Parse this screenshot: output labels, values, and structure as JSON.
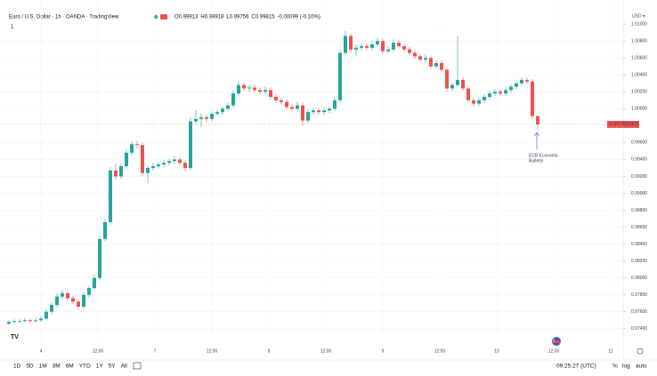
{
  "chart_data": {
    "type": "candlestick",
    "title": "Euro / U.S. Dollar · 1h · OANDA · TradingView",
    "ohlc_text": [
      "O0.99913",
      "H0.99918",
      "L0.99756",
      "C0.99815",
      "-0.00099 (-0.10%)"
    ],
    "indicator_row": "1",
    "currency": "USD ▾",
    "up_color": "#26a69a",
    "down_color": "#ef5350",
    "ylim": [
      0.9724,
      1.0118
    ],
    "yticks": [
      {
        "value": 0.974,
        "label": "0.97400"
      },
      {
        "value": 0.976,
        "label": "0.97600"
      },
      {
        "value": 0.978,
        "label": "0.97800"
      },
      {
        "value": 0.98,
        "label": "0.98000"
      },
      {
        "value": 0.982,
        "label": "0.98200"
      },
      {
        "value": 0.984,
        "label": "0.98400"
      },
      {
        "value": 0.986,
        "label": "0.98600"
      },
      {
        "value": 0.988,
        "label": "0.98800"
      },
      {
        "value": 0.99,
        "label": "0.99000"
      },
      {
        "value": 0.992,
        "label": "0.99200"
      },
      {
        "value": 0.994,
        "label": "0.99400"
      },
      {
        "value": 0.996,
        "label": "0.99600"
      },
      {
        "value": 1.0,
        "label": "1.00000"
      },
      {
        "value": 1.002,
        "label": "1.00200"
      },
      {
        "value": 1.004,
        "label": "1.00400"
      },
      {
        "value": 1.006,
        "label": "1.00600"
      },
      {
        "value": 1.008,
        "label": "1.00800"
      },
      {
        "value": 1.01,
        "label": "1.01000"
      }
    ],
    "x_labels": [
      "4",
      "12:00",
      "7",
      "12:00",
      "8",
      "12:00",
      "9",
      "12:00",
      "10",
      "12:00",
      "11"
    ],
    "grid": true,
    "last_price_label": "EURUSD",
    "annotation": [
      "ECB Economic",
      "Bulletin"
    ],
    "candles": [
      [
        0.9746,
        0.975,
        0.9744,
        0.9748
      ],
      [
        0.9748,
        0.9751,
        0.9746,
        0.9749
      ],
      [
        0.9749,
        0.9752,
        0.9747,
        0.9749
      ],
      [
        0.9749,
        0.9753,
        0.9747,
        0.975
      ],
      [
        0.975,
        0.9752,
        0.9746,
        0.9749
      ],
      [
        0.9749,
        0.9753,
        0.9747,
        0.975
      ],
      [
        0.975,
        0.9755,
        0.9748,
        0.9752
      ],
      [
        0.9752,
        0.9763,
        0.975,
        0.976
      ],
      [
        0.976,
        0.9771,
        0.9757,
        0.9768
      ],
      [
        0.9768,
        0.9782,
        0.9765,
        0.9778
      ],
      [
        0.9778,
        0.9786,
        0.9775,
        0.9782
      ],
      [
        0.9782,
        0.9785,
        0.9773,
        0.9776
      ],
      [
        0.9776,
        0.9779,
        0.9769,
        0.9772
      ],
      [
        0.9772,
        0.9775,
        0.9762,
        0.9766
      ],
      [
        0.9766,
        0.9783,
        0.9763,
        0.978
      ],
      [
        0.978,
        0.9791,
        0.9777,
        0.9788
      ],
      [
        0.9788,
        0.9804,
        0.9785,
        0.98
      ],
      [
        0.98,
        0.985,
        0.9797,
        0.9846
      ],
      [
        0.9846,
        0.987,
        0.9843,
        0.9866
      ],
      [
        0.9866,
        0.9931,
        0.9862,
        0.9927
      ],
      [
        0.9927,
        0.9935,
        0.9916,
        0.992
      ],
      [
        0.992,
        0.9936,
        0.9917,
        0.9932
      ],
      [
        0.9932,
        0.9952,
        0.9929,
        0.9948
      ],
      [
        0.9948,
        0.9962,
        0.9945,
        0.9958
      ],
      [
        0.9958,
        0.9962,
        0.9953,
        0.9957
      ],
      [
        0.9957,
        0.996,
        0.992,
        0.9924
      ],
      [
        0.9924,
        0.9933,
        0.9912,
        0.993
      ],
      [
        0.993,
        0.9936,
        0.9927,
        0.9932
      ],
      [
        0.9932,
        0.9937,
        0.9929,
        0.9934
      ],
      [
        0.9934,
        0.9939,
        0.9931,
        0.9936
      ],
      [
        0.9936,
        0.9941,
        0.9933,
        0.9938
      ],
      [
        0.9938,
        0.9944,
        0.9935,
        0.994
      ],
      [
        0.994,
        0.9943,
        0.9933,
        0.9936
      ],
      [
        0.9936,
        0.9939,
        0.9926,
        0.993
      ],
      [
        0.993,
        0.999,
        0.9927,
        0.9985
      ],
      [
        0.9985,
        0.9998,
        0.9982,
        0.9988
      ],
      [
        0.9988,
        0.9994,
        0.9978,
        0.999
      ],
      [
        0.999,
        0.9993,
        0.9984,
        0.9988
      ],
      [
        0.9988,
        0.9997,
        0.9985,
        0.9994
      ],
      [
        0.9994,
        0.9999,
        0.9991,
        0.9996
      ],
      [
        0.9996,
        1.0003,
        0.9993,
        1.0
      ],
      [
        1.0,
        1.0007,
        0.9997,
        1.0004
      ],
      [
        1.0004,
        1.0022,
        1.0001,
        1.0018
      ],
      [
        1.0018,
        1.0032,
        1.0015,
        1.0028
      ],
      [
        1.0028,
        1.0031,
        1.0021,
        1.0024
      ],
      [
        1.0024,
        1.0028,
        1.002,
        1.0025
      ],
      [
        1.0025,
        1.0028,
        1.0019,
        1.0022
      ],
      [
        1.0022,
        1.0025,
        1.0017,
        1.002
      ],
      [
        1.002,
        1.0026,
        1.0017,
        1.0022
      ],
      [
        1.0022,
        1.0025,
        1.0011,
        1.0014
      ],
      [
        1.0014,
        1.0017,
        1.0007,
        1.001
      ],
      [
        1.001,
        1.0013,
        1.0005,
        1.0008
      ],
      [
        1.0008,
        1.0011,
        0.9999,
        1.0002
      ],
      [
        1.0002,
        1.0005,
        0.9997,
        1.0
      ],
      [
        1.0,
        1.0008,
        0.9997,
        1.0004
      ],
      [
        1.0004,
        1.0007,
        0.998,
        0.9986
      ],
      [
        0.9986,
        0.9999,
        0.9983,
        0.9996
      ],
      [
        0.9996,
        1.0001,
        0.9993,
        0.9998
      ],
      [
        0.9998,
        1.0001,
        0.9993,
        0.9996
      ],
      [
        0.9996,
        1.0001,
        0.9993,
        0.9998
      ],
      [
        0.9998,
        1.0003,
        0.9995,
        1.0
      ],
      [
        1.0,
        1.0013,
        0.9997,
        1.001
      ],
      [
        1.001,
        1.007,
        1.0007,
        1.0066
      ],
      [
        1.0066,
        1.0092,
        1.0063,
        1.0086
      ],
      [
        1.0086,
        1.0089,
        1.0066,
        1.007
      ],
      [
        1.007,
        1.0076,
        1.0062,
        1.0072
      ],
      [
        1.0072,
        1.0078,
        1.0069,
        1.0074
      ],
      [
        1.0074,
        1.0077,
        1.0069,
        1.0072
      ],
      [
        1.0072,
        1.008,
        1.0069,
        1.0076
      ],
      [
        1.0076,
        1.0084,
        1.0073,
        1.008
      ],
      [
        1.008,
        1.0083,
        1.0065,
        1.0068
      ],
      [
        1.0068,
        1.0074,
        1.0065,
        1.007
      ],
      [
        1.007,
        1.0082,
        1.0067,
        1.0078
      ],
      [
        1.0078,
        1.0081,
        1.0071,
        1.0074
      ],
      [
        1.0074,
        1.0077,
        1.0067,
        1.007
      ],
      [
        1.007,
        1.0073,
        1.0063,
        1.0066
      ],
      [
        1.0066,
        1.0069,
        1.0059,
        1.0062
      ],
      [
        1.0062,
        1.0065,
        1.0055,
        1.0058
      ],
      [
        1.0058,
        1.0064,
        1.0055,
        1.006
      ],
      [
        1.006,
        1.0063,
        1.0047,
        1.005
      ],
      [
        1.005,
        1.0058,
        1.0047,
        1.0054
      ],
      [
        1.0054,
        1.0057,
        1.0043,
        1.0046
      ],
      [
        1.0046,
        1.0049,
        1.002,
        1.0024
      ],
      [
        1.0024,
        1.0031,
        1.0021,
        1.0028
      ],
      [
        1.0028,
        1.0086,
        1.0025,
        1.0034
      ],
      [
        1.0034,
        1.0037,
        1.0021,
        1.0024
      ],
      [
        1.0024,
        1.0027,
        1.0007,
        1.001
      ],
      [
        1.001,
        1.0013,
        1.0003,
        1.0006
      ],
      [
        1.0006,
        1.0013,
        1.0003,
        1.001
      ],
      [
        1.001,
        1.0017,
        1.0007,
        1.0014
      ],
      [
        1.0014,
        1.0021,
        1.0011,
        1.0018
      ],
      [
        1.0018,
        1.0023,
        1.0015,
        1.002
      ],
      [
        1.002,
        1.0023,
        1.0015,
        1.0018
      ],
      [
        1.0018,
        1.0025,
        1.0015,
        1.0022
      ],
      [
        1.0022,
        1.0029,
        1.0019,
        1.0026
      ],
      [
        1.0026,
        1.0033,
        1.0023,
        1.003
      ],
      [
        1.003,
        1.0037,
        1.0027,
        1.0034
      ],
      [
        1.0034,
        1.0037,
        1.0029,
        1.0032
      ],
      [
        1.0032,
        1.0035,
        0.9988,
        0.99913
      ],
      [
        0.99913,
        0.99918,
        0.99756,
        0.99815
      ]
    ]
  },
  "toolbar": {
    "ranges": [
      "1D",
      "5D",
      "1M",
      "3M",
      "6M",
      "YTD",
      "1Y",
      "5Y",
      "All"
    ],
    "clock": "09:25:27 (UTC)",
    "options": [
      "%",
      "log",
      "auto"
    ]
  }
}
